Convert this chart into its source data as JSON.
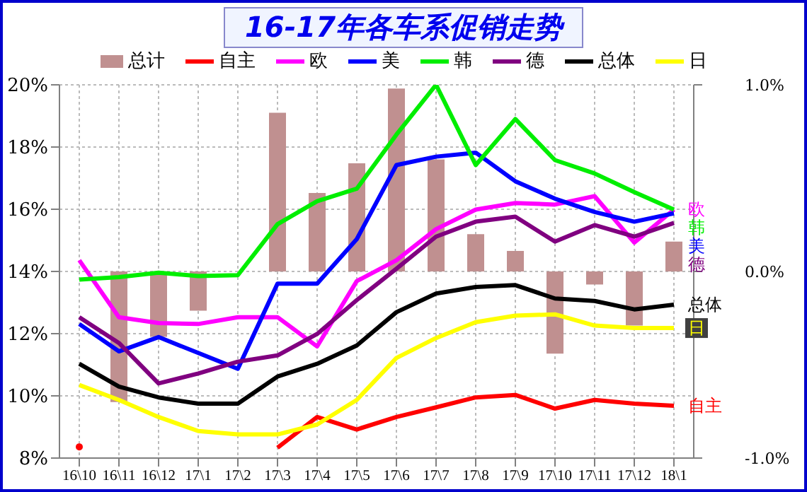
{
  "chart_data": {
    "type": "line",
    "title": "16-17年各车系促销走势",
    "categories": [
      "16\\10",
      "16\\11",
      "16\\12",
      "17\\1",
      "17\\2",
      "17\\3",
      "17\\4",
      "17\\5",
      "17\\6",
      "17\\7",
      "17\\8",
      "17\\9",
      "17\\10",
      "17\\11",
      "17\\12",
      "18\\1"
    ],
    "series": [
      {
        "name": "总计",
        "type": "bar",
        "axis": "y2",
        "color": "#c09090",
        "values": [
          0,
          -0.7,
          -0.35,
          -0.21,
          0,
          0.85,
          0.42,
          0.58,
          0.98,
          0.6,
          0.2,
          0.11,
          -0.44,
          -0.07,
          -0.29,
          0.16
        ]
      },
      {
        "name": "自主",
        "color": "#ff0000",
        "values": [
          8.36,
          null,
          null,
          null,
          null,
          8.33,
          9.32,
          8.92,
          9.32,
          9.63,
          9.95,
          10.03,
          9.59,
          9.87,
          9.75,
          9.68
        ]
      },
      {
        "name": "欧",
        "color": "#ff00ff",
        "values": [
          14.36,
          12.53,
          12.34,
          12.31,
          12.53,
          12.53,
          11.59,
          13.69,
          14.36,
          15.36,
          15.99,
          16.2,
          16.15,
          16.42,
          14.93,
          15.99
        ]
      },
      {
        "name": "美",
        "color": "#0000ff",
        "values": [
          12.31,
          11.43,
          11.89,
          11.38,
          10.87,
          13.61,
          13.61,
          15.04,
          17.42,
          17.69,
          17.82,
          16.9,
          16.34,
          15.91,
          15.6,
          15.87
        ]
      },
      {
        "name": "韩",
        "color": "#00ee00",
        "values": [
          13.74,
          13.82,
          13.96,
          13.85,
          13.88,
          15.52,
          16.26,
          16.66,
          18.4,
          20.0,
          17.42,
          18.9,
          17.58,
          17.15,
          16.55,
          15.99
        ]
      },
      {
        "name": "德",
        "color": "#800080",
        "values": [
          12.53,
          11.7,
          10.4,
          10.72,
          11.1,
          11.3,
          11.99,
          13.08,
          14.09,
          15.12,
          15.6,
          15.76,
          14.96,
          15.49,
          15.12,
          15.56
        ]
      },
      {
        "name": "总体",
        "color": "#000000",
        "values": [
          11.03,
          10.3,
          9.95,
          9.75,
          9.75,
          10.62,
          11.03,
          11.62,
          12.69,
          13.29,
          13.5,
          13.56,
          13.13,
          13.05,
          12.78,
          12.93
        ]
      },
      {
        "name": "日",
        "color": "#ffff00",
        "values": [
          10.35,
          9.87,
          9.32,
          8.87,
          8.76,
          8.76,
          9.08,
          9.87,
          11.22,
          11.86,
          12.37,
          12.58,
          12.62,
          12.26,
          12.18,
          12.18
        ]
      }
    ],
    "ylim": [
      8,
      20
    ],
    "yticks": [
      {
        "value": 8,
        "label": "8%"
      },
      {
        "value": 10,
        "label": "10%"
      },
      {
        "value": 12,
        "label": "12%"
      },
      {
        "value": 14,
        "label": "14%"
      },
      {
        "value": 16,
        "label": "16%"
      },
      {
        "value": 18,
        "label": "18%"
      },
      {
        "value": 20,
        "label": "20%"
      }
    ],
    "y2lim": [
      -1,
      1
    ],
    "y2ticks": [
      {
        "value": -1,
        "label": "-1.0%"
      },
      {
        "value": 0,
        "label": "0.0%"
      },
      {
        "value": 1,
        "label": "1.0%"
      }
    ],
    "grid": true,
    "legend": "top",
    "marker": "none",
    "line_style": "solid"
  }
}
